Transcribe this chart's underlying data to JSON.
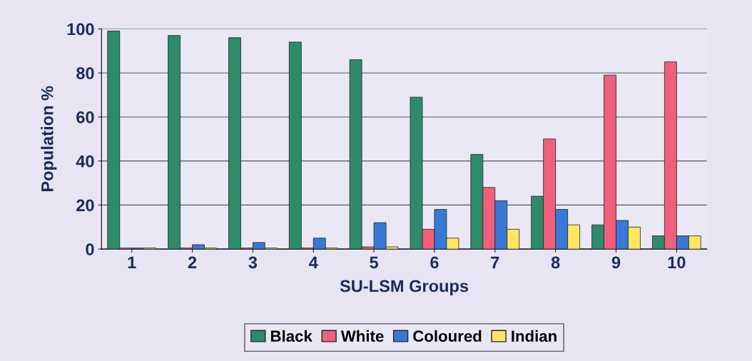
{
  "chart_data": {
    "type": "bar",
    "xlabel": "SU-LSM Groups",
    "ylabel": "Population %",
    "categories": [
      "1",
      "2",
      "3",
      "4",
      "5",
      "6",
      "7",
      "8",
      "9",
      "10"
    ],
    "series": [
      {
        "name": "Black",
        "color": "#2e8b6a",
        "values": [
          99,
          97,
          96,
          94,
          86,
          69,
          43,
          24,
          11,
          6
        ]
      },
      {
        "name": "White",
        "color": "#f0607a",
        "values": [
          0.5,
          0.5,
          0.5,
          0.5,
          1,
          9,
          28,
          50,
          79,
          85
        ]
      },
      {
        "name": "Coloured",
        "color": "#3a78d8",
        "values": [
          0.5,
          2,
          3,
          5,
          12,
          18,
          22,
          18,
          13,
          6
        ]
      },
      {
        "name": "Indian",
        "color": "#ffe860",
        "values": [
          0.5,
          0.5,
          0.5,
          0.5,
          1,
          5,
          9,
          11,
          10,
          6
        ]
      }
    ],
    "ylim": [
      0,
      100
    ],
    "yticks": [
      0,
      20,
      40,
      60,
      80,
      100
    ],
    "grid": "y",
    "legend": "bottom"
  }
}
